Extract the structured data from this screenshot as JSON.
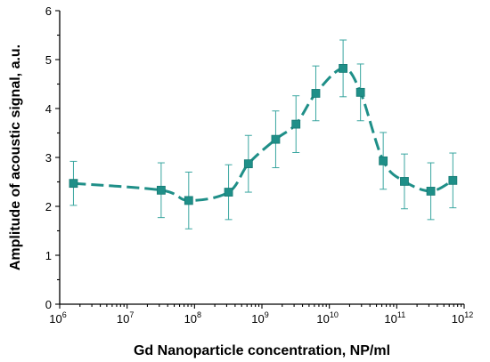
{
  "chart_data": {
    "type": "scatter",
    "xscale": "log",
    "xlim": [
      1000000,
      1000000000000
    ],
    "ylim": [
      0,
      6
    ],
    "xlabel": "Gd Nanoparticle concentration, NP/ml",
    "ylabel": "Amplitude of acoustic signal, a.u.",
    "xticks": [
      {
        "value": 1000000,
        "base": "10",
        "exp": "6"
      },
      {
        "value": 10000000,
        "base": "10",
        "exp": "7"
      },
      {
        "value": 100000000,
        "base": "10",
        "exp": "8"
      },
      {
        "value": 1000000000,
        "base": "10",
        "exp": "9"
      },
      {
        "value": 10000000000,
        "base": "10",
        "exp": "10"
      },
      {
        "value": 100000000000,
        "base": "10",
        "exp": "11"
      },
      {
        "value": 1000000000000,
        "base": "10",
        "exp": "12"
      }
    ],
    "yticks": [
      "0",
      "1",
      "2",
      "3",
      "4",
      "5",
      "6"
    ],
    "color": "#1f8f88",
    "error_color": "#3aa6a0",
    "fit_line": "dashed smooth curve",
    "points": [
      {
        "x": 1600000,
        "y": 2.47,
        "err": 0.45
      },
      {
        "x": 32000000,
        "y": 2.33,
        "err": 0.56
      },
      {
        "x": 82000000,
        "y": 2.12,
        "err": 0.58
      },
      {
        "x": 320000000,
        "y": 2.29,
        "err": 0.56
      },
      {
        "x": 630000000,
        "y": 2.87,
        "err": 0.58
      },
      {
        "x": 1600000000,
        "y": 3.37,
        "err": 0.58
      },
      {
        "x": 3200000000,
        "y": 3.68,
        "err": 0.58
      },
      {
        "x": 6300000000,
        "y": 4.31,
        "err": 0.56
      },
      {
        "x": 16000000000,
        "y": 4.82,
        "err": 0.58
      },
      {
        "x": 29000000000,
        "y": 4.33,
        "err": 0.58
      },
      {
        "x": 63000000000,
        "y": 2.93,
        "err": 0.58
      },
      {
        "x": 130000000000,
        "y": 2.51,
        "err": 0.56
      },
      {
        "x": 320000000000,
        "y": 2.31,
        "err": 0.58
      },
      {
        "x": 680000000000,
        "y": 2.53,
        "err": 0.56
      }
    ]
  }
}
